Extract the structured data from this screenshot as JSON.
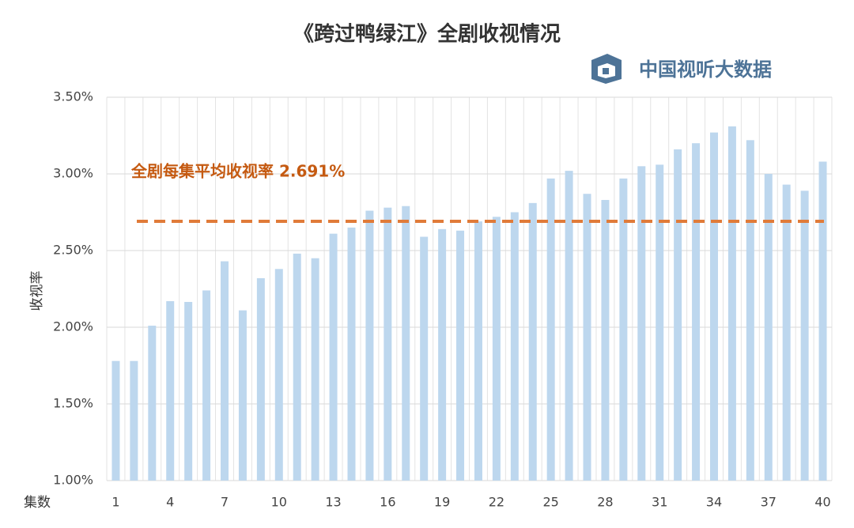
{
  "chart_data": {
    "type": "bar",
    "title": "《跨过鸭绿江》全剧收视情况",
    "brand": "中国视听大数据",
    "x_label": "集数",
    "y_label": "收视率",
    "categories": [
      "1",
      null,
      null,
      "4",
      null,
      null,
      "7",
      null,
      null,
      "10",
      null,
      null,
      "13",
      null,
      null,
      "16",
      null,
      null,
      "19",
      null,
      null,
      "22",
      null,
      null,
      "25",
      null,
      null,
      "28",
      null,
      null,
      "31",
      null,
      null,
      "34",
      null,
      null,
      "37",
      null,
      null,
      "40"
    ],
    "values": [
      1.78,
      1.78,
      2.01,
      2.17,
      2.165,
      2.24,
      2.43,
      2.11,
      2.32,
      2.38,
      2.48,
      2.45,
      2.61,
      2.65,
      2.76,
      2.78,
      2.79,
      2.59,
      2.64,
      2.63,
      2.69,
      2.72,
      2.75,
      2.81,
      2.97,
      3.02,
      2.87,
      2.83,
      2.97,
      3.05,
      3.06,
      3.16,
      3.2,
      3.27,
      3.31,
      3.22,
      3.0,
      2.93,
      2.89,
      3.08
    ],
    "color": "#bdd7ee",
    "average": {
      "value": 2.691,
      "label": "全剧每集平均收视率 2.691%",
      "color": "#e07b39"
    },
    "ylim": [
      1.0,
      3.5
    ],
    "yticks": [
      {
        "value": 1.0,
        "label": "1.00%"
      },
      {
        "value": 1.5,
        "label": "1.50%"
      },
      {
        "value": 2.0,
        "label": "2.00%"
      },
      {
        "value": 2.5,
        "label": "2.50%"
      },
      {
        "value": 3.0,
        "label": "3.00%"
      },
      {
        "value": 3.5,
        "label": "3.50%"
      }
    ],
    "grid": true
  }
}
